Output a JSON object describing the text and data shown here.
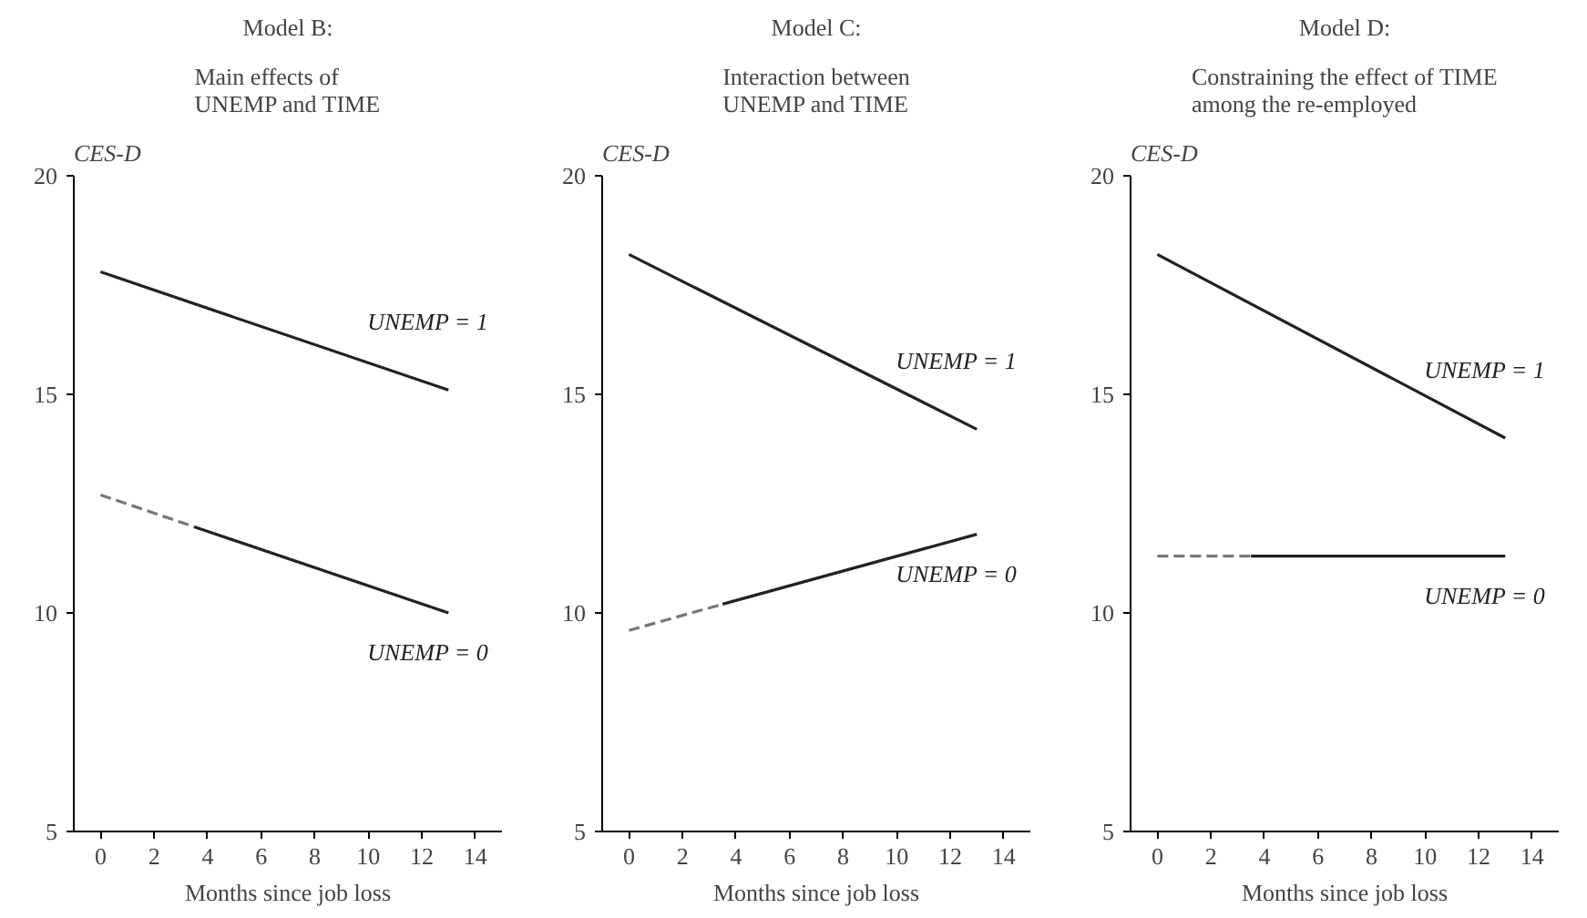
{
  "chart_data": [
    {
      "type": "line",
      "title": "Model B:",
      "subtitle": "Main effects of\nUNEMP and TIME",
      "xlabel": "Months since job loss",
      "ylabel": "CES-D",
      "xlim": [
        -1,
        15
      ],
      "ylim": [
        5,
        20
      ],
      "xticks": [
        0,
        2,
        4,
        6,
        8,
        10,
        12,
        14
      ],
      "yticks": [
        5,
        10,
        15,
        20
      ],
      "grid": false,
      "marker": "none",
      "series": [
        {
          "name": "UNEMP = 1",
          "color": "#222222",
          "line_style": "solid",
          "x": [
            0,
            13
          ],
          "values": [
            17.8,
            15.1
          ]
        },
        {
          "color": "#777777",
          "line_style": "dashed",
          "x": [
            0,
            3.5
          ],
          "values": [
            12.7,
            11.97
          ]
        },
        {
          "name": "UNEMP = 0",
          "color": "#222222",
          "line_style": "solid",
          "x": [
            3.5,
            13
          ],
          "values": [
            11.97,
            10.0
          ]
        }
      ]
    },
    {
      "type": "line",
      "title": "Model C:",
      "subtitle": "Interaction between\nUNEMP and TIME",
      "xlabel": "Months since job loss",
      "ylabel": "CES-D",
      "xlim": [
        -1,
        15
      ],
      "ylim": [
        5,
        20
      ],
      "xticks": [
        0,
        2,
        4,
        6,
        8,
        10,
        12,
        14
      ],
      "yticks": [
        5,
        10,
        15,
        20
      ],
      "grid": false,
      "marker": "none",
      "series": [
        {
          "name": "UNEMP = 1",
          "color": "#222222",
          "line_style": "solid",
          "x": [
            0,
            13
          ],
          "values": [
            18.2,
            14.2
          ]
        },
        {
          "color": "#777777",
          "line_style": "dashed",
          "x": [
            0,
            3.5
          ],
          "values": [
            9.6,
            10.2
          ]
        },
        {
          "name": "UNEMP = 0",
          "color": "#222222",
          "line_style": "solid",
          "x": [
            3.5,
            13
          ],
          "values": [
            10.2,
            11.8
          ]
        }
      ]
    },
    {
      "type": "line",
      "title": "Model D:",
      "subtitle": "Constraining the effect of TIME\namong the re-employed",
      "xlabel": "Months since job loss",
      "ylabel": "CES-D",
      "xlim": [
        -1,
        15
      ],
      "ylim": [
        5,
        20
      ],
      "xticks": [
        0,
        2,
        4,
        6,
        8,
        10,
        12,
        14
      ],
      "yticks": [
        5,
        10,
        15,
        20
      ],
      "grid": false,
      "marker": "none",
      "series": [
        {
          "name": "UNEMP = 1",
          "color": "#222222",
          "line_style": "solid",
          "x": [
            0,
            13
          ],
          "values": [
            18.2,
            14.0
          ]
        },
        {
          "color": "#777777",
          "line_style": "dashed",
          "x": [
            0,
            3.5
          ],
          "values": [
            11.3,
            11.3
          ]
        },
        {
          "name": "UNEMP = 0",
          "color": "#222222",
          "line_style": "solid",
          "x": [
            3.5,
            13
          ],
          "values": [
            11.3,
            11.3
          ]
        }
      ]
    }
  ]
}
